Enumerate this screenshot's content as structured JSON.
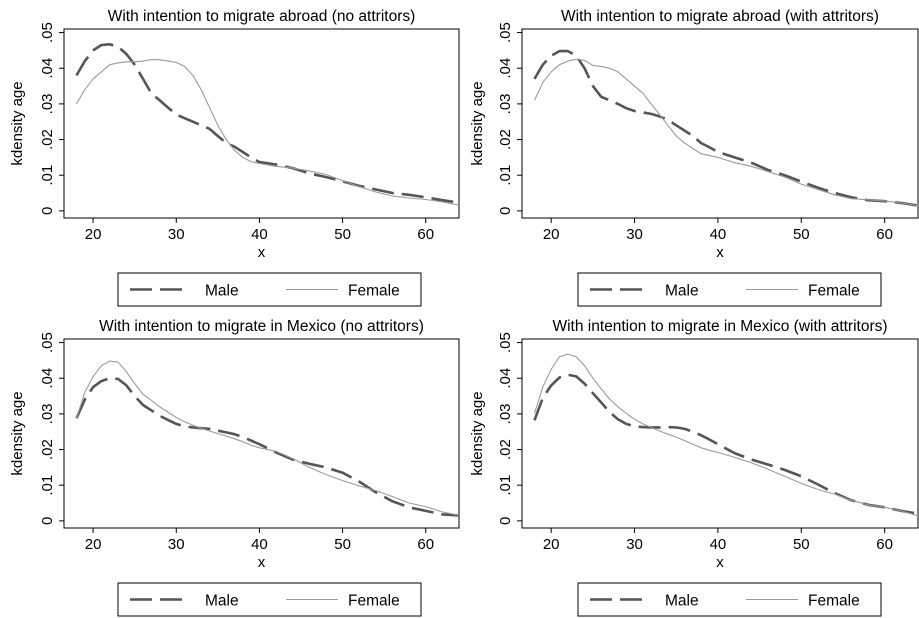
{
  "chart_data": [
    {
      "type": "line",
      "title": "With intention to migrate abroad (no attritors)",
      "xlabel": "x",
      "ylabel": "kdensity age",
      "xlim": [
        16.5,
        64
      ],
      "ylim": [
        -0.002,
        0.051
      ],
      "xticks": [
        "20",
        "30",
        "40",
        "50",
        "60"
      ],
      "yticks": [
        "0",
        ".01",
        ".02",
        ".03",
        ".04",
        ".05"
      ],
      "legend": {
        "position": "bottom",
        "entries": [
          "Male",
          "Female"
        ]
      },
      "series": [
        {
          "name": "Male",
          "style": "dashed",
          "color": "#555555",
          "x": [
            18,
            19,
            20,
            21,
            22,
            23,
            24,
            25,
            26,
            27,
            28,
            29,
            30,
            31,
            32,
            33,
            34,
            35,
            36,
            37,
            38,
            39,
            40,
            42,
            44,
            46,
            48,
            50,
            52,
            54,
            56,
            58,
            60,
            62,
            64
          ],
          "y": [
            0.038,
            0.042,
            0.045,
            0.0465,
            0.0467,
            0.046,
            0.044,
            0.041,
            0.037,
            0.033,
            0.031,
            0.029,
            0.027,
            0.026,
            0.025,
            0.024,
            0.023,
            0.021,
            0.019,
            0.018,
            0.0165,
            0.015,
            0.0137,
            0.013,
            0.012,
            0.0105,
            0.0095,
            0.0083,
            0.007,
            0.006,
            0.005,
            0.0045,
            0.0038,
            0.003,
            0.0023
          ]
        },
        {
          "name": "Female",
          "style": "solid",
          "color": "#9a9a9a",
          "x": [
            18,
            19,
            20,
            21,
            22,
            23,
            24,
            25,
            26,
            27,
            28,
            29,
            30,
            31,
            32,
            33,
            34,
            35,
            36,
            37,
            38,
            39,
            40,
            42,
            44,
            46,
            48,
            50,
            52,
            54,
            56,
            58,
            60,
            62,
            64
          ],
          "y": [
            0.03,
            0.034,
            0.037,
            0.039,
            0.041,
            0.0415,
            0.0418,
            0.0418,
            0.042,
            0.0424,
            0.0424,
            0.042,
            0.0416,
            0.0405,
            0.038,
            0.034,
            0.029,
            0.024,
            0.02,
            0.017,
            0.015,
            0.0138,
            0.0133,
            0.0125,
            0.012,
            0.0112,
            0.0102,
            0.0085,
            0.0068,
            0.0053,
            0.0042,
            0.0036,
            0.0032,
            0.0025,
            0.0016
          ]
        }
      ]
    },
    {
      "type": "line",
      "title": "With intention to migrate abroad (with attritors)",
      "xlabel": "x",
      "ylabel": "kdensity age",
      "xlim": [
        16.5,
        64
      ],
      "ylim": [
        -0.002,
        0.051
      ],
      "xticks": [
        "20",
        "30",
        "40",
        "50",
        "60"
      ],
      "yticks": [
        "0",
        ".01",
        ".02",
        ".03",
        ".04",
        ".05"
      ],
      "legend": {
        "position": "bottom",
        "entries": [
          "Male",
          "Female"
        ]
      },
      "series": [
        {
          "name": "Male",
          "style": "dashed",
          "color": "#555555",
          "x": [
            18,
            19,
            20,
            21,
            22,
            23,
            24,
            25,
            26,
            27,
            28,
            29,
            30,
            31,
            32,
            33,
            34,
            35,
            36,
            37,
            38,
            39,
            40,
            42,
            44,
            46,
            48,
            50,
            52,
            54,
            56,
            58,
            60,
            62,
            64
          ],
          "y": [
            0.037,
            0.041,
            0.0435,
            0.0448,
            0.0448,
            0.0435,
            0.04,
            0.035,
            0.032,
            0.031,
            0.03,
            0.0288,
            0.028,
            0.0276,
            0.0272,
            0.0265,
            0.0255,
            0.024,
            0.0225,
            0.021,
            0.019,
            0.0178,
            0.0165,
            0.015,
            0.0135,
            0.0115,
            0.01,
            0.0082,
            0.0065,
            0.005,
            0.0038,
            0.003,
            0.0027,
            0.0022,
            0.0015
          ]
        },
        {
          "name": "Female",
          "style": "solid",
          "color": "#9a9a9a",
          "x": [
            18,
            19,
            20,
            21,
            22,
            23,
            24,
            25,
            26,
            27,
            28,
            29,
            30,
            31,
            32,
            33,
            34,
            35,
            36,
            37,
            38,
            39,
            40,
            42,
            44,
            46,
            48,
            50,
            52,
            54,
            56,
            58,
            60,
            62,
            64
          ],
          "y": [
            0.031,
            0.036,
            0.039,
            0.041,
            0.042,
            0.0425,
            0.0422,
            0.0408,
            0.0405,
            0.04,
            0.039,
            0.037,
            0.035,
            0.033,
            0.03,
            0.027,
            0.024,
            0.021,
            0.019,
            0.0175,
            0.016,
            0.0155,
            0.015,
            0.0135,
            0.0125,
            0.011,
            0.0095,
            0.0075,
            0.006,
            0.0045,
            0.0034,
            0.0031,
            0.0028,
            0.0022,
            0.0015
          ]
        }
      ]
    },
    {
      "type": "line",
      "title": "With intention to migrate in Mexico (no attritors)",
      "xlabel": "x",
      "ylabel": "kdensity age",
      "xlim": [
        16.5,
        64
      ],
      "ylim": [
        -0.002,
        0.051
      ],
      "xticks": [
        "20",
        "30",
        "40",
        "50",
        "60"
      ],
      "yticks": [
        "0",
        ".01",
        ".02",
        ".03",
        ".04",
        ".05"
      ],
      "legend": {
        "position": "bottom",
        "entries": [
          "Male",
          "Female"
        ]
      },
      "series": [
        {
          "name": "Male",
          "style": "dashed",
          "color": "#555555",
          "x": [
            18,
            19,
            20,
            21,
            22,
            23,
            24,
            25,
            26,
            27,
            28,
            29,
            30,
            31,
            32,
            33,
            34,
            35,
            36,
            37,
            38,
            39,
            40,
            42,
            44,
            46,
            48,
            50,
            52,
            54,
            56,
            58,
            60,
            62,
            64
          ],
          "y": [
            0.0288,
            0.034,
            0.0375,
            0.0392,
            0.04,
            0.0398,
            0.038,
            0.035,
            0.0325,
            0.031,
            0.0295,
            0.0283,
            0.0272,
            0.0265,
            0.0262,
            0.026,
            0.0258,
            0.0253,
            0.0248,
            0.0243,
            0.0235,
            0.0225,
            0.0215,
            0.0192,
            0.0172,
            0.016,
            0.015,
            0.0135,
            0.011,
            0.008,
            0.0055,
            0.0038,
            0.0028,
            0.0018,
            0.0015
          ]
        },
        {
          "name": "Female",
          "style": "solid",
          "color": "#9a9a9a",
          "x": [
            18,
            19,
            20,
            21,
            22,
            23,
            24,
            25,
            26,
            27,
            28,
            29,
            30,
            31,
            32,
            33,
            34,
            35,
            36,
            37,
            38,
            39,
            40,
            42,
            44,
            46,
            48,
            50,
            52,
            54,
            56,
            58,
            60,
            62,
            64
          ],
          "y": [
            0.0288,
            0.036,
            0.0405,
            0.0435,
            0.0448,
            0.0445,
            0.0418,
            0.0385,
            0.0355,
            0.0338,
            0.032,
            0.0305,
            0.029,
            0.0278,
            0.0268,
            0.026,
            0.0252,
            0.0245,
            0.0238,
            0.023,
            0.0222,
            0.0212,
            0.0205,
            0.0195,
            0.0175,
            0.015,
            0.013,
            0.0113,
            0.0098,
            0.0085,
            0.0068,
            0.005,
            0.004,
            0.0025,
            0.0016
          ]
        }
      ]
    },
    {
      "type": "line",
      "title": "With intention to migrate in Mexico (with attritors)",
      "xlabel": "x",
      "ylabel": "kdensity age",
      "xlim": [
        16.5,
        64
      ],
      "ylim": [
        -0.002,
        0.051
      ],
      "xticks": [
        "20",
        "30",
        "40",
        "50",
        "60"
      ],
      "yticks": [
        "0",
        ".01",
        ".02",
        ".03",
        ".04",
        ".05"
      ],
      "legend": {
        "position": "bottom",
        "entries": [
          "Male",
          "Female"
        ]
      },
      "series": [
        {
          "name": "Male",
          "style": "dashed",
          "color": "#555555",
          "x": [
            18,
            19,
            20,
            21,
            22,
            23,
            24,
            25,
            26,
            27,
            28,
            29,
            30,
            31,
            32,
            33,
            34,
            35,
            36,
            37,
            38,
            39,
            40,
            42,
            44,
            46,
            48,
            50,
            52,
            54,
            56,
            58,
            60,
            62,
            64
          ],
          "y": [
            0.0282,
            0.0345,
            0.038,
            0.0402,
            0.041,
            0.0405,
            0.0385,
            0.0358,
            0.0332,
            0.0305,
            0.0285,
            0.0272,
            0.0265,
            0.0263,
            0.0262,
            0.0262,
            0.0263,
            0.0262,
            0.0258,
            0.025,
            0.024,
            0.0228,
            0.0215,
            0.019,
            0.0172,
            0.0158,
            0.0143,
            0.0125,
            0.0102,
            0.0078,
            0.0058,
            0.0045,
            0.0038,
            0.0028,
            0.002
          ]
        },
        {
          "name": "Female",
          "style": "solid",
          "color": "#9a9a9a",
          "x": [
            18,
            19,
            20,
            21,
            22,
            23,
            24,
            25,
            26,
            27,
            28,
            29,
            30,
            31,
            32,
            33,
            34,
            35,
            36,
            37,
            38,
            39,
            40,
            42,
            44,
            46,
            48,
            50,
            52,
            54,
            56,
            58,
            60,
            62,
            64
          ],
          "y": [
            0.0302,
            0.0375,
            0.0425,
            0.046,
            0.0468,
            0.046,
            0.0435,
            0.04,
            0.037,
            0.0342,
            0.032,
            0.0302,
            0.0285,
            0.0272,
            0.0262,
            0.0252,
            0.0243,
            0.0235,
            0.0225,
            0.0215,
            0.0205,
            0.0198,
            0.0192,
            0.0178,
            0.0163,
            0.0145,
            0.0125,
            0.0105,
            0.0088,
            0.0075,
            0.0058,
            0.0045,
            0.0038,
            0.0028,
            0.0014
          ]
        }
      ]
    }
  ]
}
